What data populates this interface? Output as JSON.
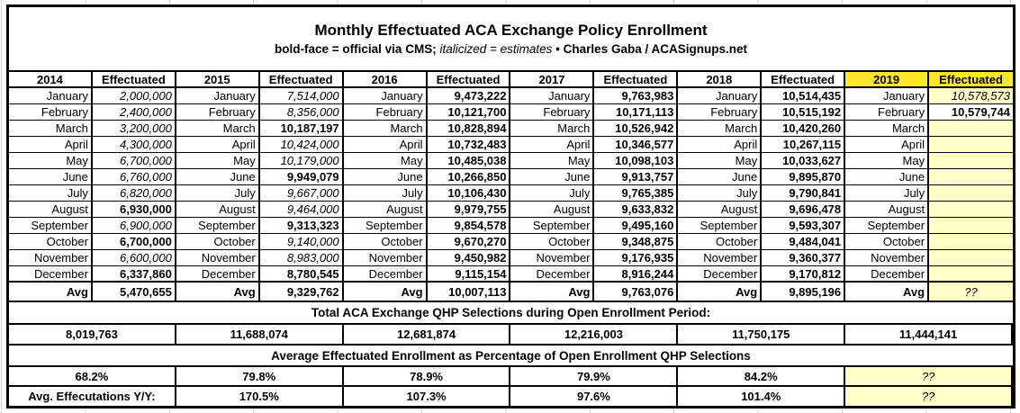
{
  "header": {
    "title": "Monthly Effectuated ACA Exchange Policy Enrollment",
    "legend_bold": "bold-face = official via CMS;",
    "legend_italic": "italicized = estimates",
    "legend_separator": "•",
    "legend_credit": "Charles Gaba / ACASignups.net"
  },
  "effectuated_label": "Effectuated",
  "avg_label": "Avg",
  "months": [
    "January",
    "February",
    "March",
    "April",
    "May",
    "June",
    "July",
    "August",
    "September",
    "October",
    "November",
    "December"
  ],
  "years": [
    {
      "year": "2014",
      "highlight": false,
      "values": [
        "2,000,000",
        "2,400,000",
        "3,200,000",
        "4,300,000",
        "6,700,000",
        "6,760,000",
        "6,820,000",
        "6,930,000",
        "6,900,000",
        "6,700,000",
        "6,600,000",
        "6,337,860"
      ],
      "styles": [
        "e",
        "e",
        "e",
        "e",
        "e",
        "e",
        "e",
        "o",
        "e",
        "o",
        "e",
        "o"
      ],
      "avg": "5,470,655",
      "avg_style": "o"
    },
    {
      "year": "2015",
      "highlight": false,
      "values": [
        "7,514,000",
        "8,356,000",
        "10,187,197",
        "10,424,000",
        "10,179,000",
        "9,949,079",
        "9,667,000",
        "9,464,000",
        "9,313,323",
        "9,140,000",
        "8,983,000",
        "8,780,545"
      ],
      "styles": [
        "e",
        "e",
        "o",
        "e",
        "e",
        "o",
        "e",
        "e",
        "o",
        "e",
        "e",
        "o"
      ],
      "avg": "9,329,762",
      "avg_style": "o"
    },
    {
      "year": "2016",
      "highlight": false,
      "values": [
        "9,473,222",
        "10,121,700",
        "10,828,894",
        "10,732,483",
        "10,485,038",
        "10,266,850",
        "10,106,430",
        "9,979,755",
        "9,854,578",
        "9,670,270",
        "9,450,982",
        "9,115,154"
      ],
      "styles": [
        "o",
        "o",
        "o",
        "o",
        "o",
        "o",
        "o",
        "o",
        "o",
        "o",
        "o",
        "o"
      ],
      "avg": "10,007,113",
      "avg_style": "o"
    },
    {
      "year": "2017",
      "highlight": false,
      "values": [
        "9,763,983",
        "10,171,113",
        "10,526,942",
        "10,346,577",
        "10,098,103",
        "9,913,757",
        "9,765,385",
        "9,633,832",
        "9,495,160",
        "9,348,875",
        "9,176,935",
        "8,916,244"
      ],
      "styles": [
        "o",
        "o",
        "o",
        "o",
        "o",
        "o",
        "o",
        "o",
        "o",
        "o",
        "o",
        "o"
      ],
      "avg": "9,763,076",
      "avg_style": "o"
    },
    {
      "year": "2018",
      "highlight": false,
      "values": [
        "10,514,435",
        "10,515,192",
        "10,420,260",
        "10,267,115",
        "10,033,627",
        "9,895,870",
        "9,790,841",
        "9,696,478",
        "9,593,307",
        "9,484,041",
        "9,360,377",
        "9,170,812"
      ],
      "styles": [
        "o",
        "o",
        "o",
        "o",
        "o",
        "o",
        "o",
        "o",
        "o",
        "o",
        "o",
        "o"
      ],
      "avg": "9,895,196",
      "avg_style": "o"
    },
    {
      "year": "2019",
      "highlight": true,
      "values": [
        "10,578,573",
        "10,579,744",
        "",
        "",
        "",
        "",
        "",
        "",
        "",
        "",
        "",
        ""
      ],
      "styles": [
        "eh",
        "o",
        "p",
        "p",
        "p",
        "p",
        "p",
        "p",
        "p",
        "p",
        "p",
        "p"
      ],
      "avg": "??",
      "avg_style": "ph"
    }
  ],
  "qhp_section": {
    "label": "Total ACA Exchange QHP Selections during Open Enrollment Period:",
    "totals": [
      "8,019,763",
      "11,688,074",
      "12,681,874",
      "12,216,003",
      "11,750,175",
      "11,444,141"
    ]
  },
  "pct_section": {
    "label": "Average Effectuated Enrollment as Percentage of Open Enrollment QHP Selections",
    "values": [
      "68.2%",
      "79.8%",
      "78.9%",
      "79.9%",
      "84.2%",
      "??"
    ],
    "pending": [
      false,
      false,
      false,
      false,
      false,
      true
    ]
  },
  "yy_section": {
    "label": "Avg. Effecutations Y/Y:",
    "values": [
      "170.5%",
      "107.3%",
      "97.6%",
      "101.4%",
      "??"
    ],
    "pending": [
      false,
      false,
      false,
      false,
      true
    ]
  },
  "colors": {
    "highlight_header": "#ffe729",
    "highlight_cell": "#ffffc6",
    "border": "#000000"
  },
  "chart_data": {
    "type": "table",
    "title": "Monthly Effectuated ACA Exchange Policy Enrollment",
    "x": [
      "January",
      "February",
      "March",
      "April",
      "May",
      "June",
      "July",
      "August",
      "September",
      "October",
      "November",
      "December"
    ],
    "series": [
      {
        "name": "2014",
        "values": [
          2000000,
          2400000,
          3200000,
          4300000,
          6700000,
          6760000,
          6820000,
          6930000,
          6900000,
          6700000,
          6600000,
          6337860
        ],
        "avg": 5470655
      },
      {
        "name": "2015",
        "values": [
          7514000,
          8356000,
          10187197,
          10424000,
          10179000,
          9949079,
          9667000,
          9464000,
          9313323,
          9140000,
          8983000,
          8780545
        ],
        "avg": 9329762
      },
      {
        "name": "2016",
        "values": [
          9473222,
          10121700,
          10828894,
          10732483,
          10485038,
          10266850,
          10106430,
          9979755,
          9854578,
          9670270,
          9450982,
          9115154
        ],
        "avg": 10007113
      },
      {
        "name": "2017",
        "values": [
          9763983,
          10171113,
          10526942,
          10346577,
          10098103,
          9913757,
          9765385,
          9633832,
          9495160,
          9348875,
          9176935,
          8916244
        ],
        "avg": 9763076
      },
      {
        "name": "2018",
        "values": [
          10514435,
          10515192,
          10420260,
          10267115,
          10033627,
          9895870,
          9790841,
          9696478,
          9593307,
          9484041,
          9360377,
          9170812
        ],
        "avg": 9895196
      },
      {
        "name": "2019",
        "values": [
          10578573,
          10579744,
          null,
          null,
          null,
          null,
          null,
          null,
          null,
          null,
          null,
          null
        ],
        "avg": null
      }
    ],
    "qhp_open_enrollment_totals": {
      "2014": 8019763,
      "2015": 11688074,
      "2016": 12681874,
      "2017": 12216003,
      "2018": 11750175,
      "2019": 11444141
    },
    "avg_effectuated_pct_of_qhp": {
      "2014": 68.2,
      "2015": 79.8,
      "2016": 78.9,
      "2017": 79.9,
      "2018": 84.2,
      "2019": null
    },
    "avg_effectuations_yoy_pct": {
      "2015": 170.5,
      "2016": 107.3,
      "2017": 97.6,
      "2018": 101.4,
      "2019": null
    }
  }
}
